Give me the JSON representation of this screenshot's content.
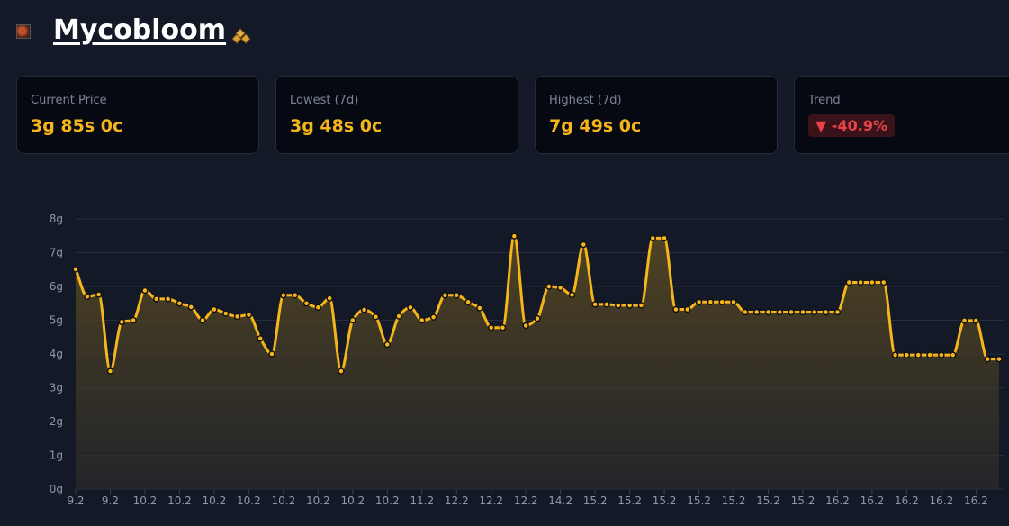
{
  "header": {
    "item_name": "Mycobloom",
    "item_icon": "mycobloom-herb-icon",
    "currency_icon": "gold-coins-icon"
  },
  "stats": [
    {
      "label": "Current Price",
      "value": "3g 85s 0c"
    },
    {
      "label": "Lowest (7d)",
      "value": "3g 48s 0c"
    },
    {
      "label": "Highest (7d)",
      "value": "7g 49s 0c"
    }
  ],
  "trend": {
    "label": "Trend",
    "value": "-40.9%",
    "direction": "down",
    "icon": "triangle-down-icon",
    "color": "#e8434b"
  },
  "colors": {
    "line": "#f5b51b",
    "background": "#131926",
    "card": "#060911"
  },
  "chart_data": {
    "type": "area",
    "ylabel": "",
    "xlabel": "",
    "ylim": [
      0,
      8
    ],
    "yticks": [
      "0g",
      "1g",
      "2g",
      "3g",
      "4g",
      "5g",
      "6g",
      "7g",
      "8g"
    ],
    "grid": true,
    "xtick_every": 3,
    "xticks": [
      "9.2",
      "9.2",
      "10.2",
      "10.2",
      "10.2",
      "10.2",
      "10.2",
      "10.2",
      "10.2",
      "10.2",
      "11.2",
      "12.2",
      "12.2",
      "12.2",
      "14.2",
      "15.2",
      "15.2",
      "15.2",
      "15.2",
      "15.2",
      "15.2",
      "15.2",
      "16.2",
      "16.2",
      "16.2",
      "16.2",
      "16.2"
    ],
    "values": [
      6.51,
      5.7,
      5.76,
      3.49,
      4.95,
      5.0,
      5.88,
      5.63,
      5.63,
      5.5,
      5.39,
      5.0,
      5.32,
      5.2,
      5.11,
      5.16,
      4.46,
      4.0,
      5.74,
      5.74,
      5.5,
      5.38,
      5.65,
      3.49,
      5.0,
      5.31,
      5.1,
      4.28,
      5.12,
      5.38,
      5.0,
      5.09,
      5.74,
      5.74,
      5.54,
      5.36,
      4.78,
      4.78,
      7.49,
      4.84,
      5.05,
      6.0,
      5.96,
      5.75,
      7.24,
      5.47,
      5.47,
      5.44,
      5.44,
      5.44,
      7.43,
      7.43,
      5.32,
      5.32,
      5.54,
      5.54,
      5.54,
      5.54,
      5.24,
      5.24,
      5.24,
      5.24,
      5.24,
      5.24,
      5.24,
      5.24,
      5.24,
      6.12,
      6.12,
      6.12,
      6.12,
      3.97,
      3.97,
      3.97,
      3.97,
      3.97,
      3.97,
      4.99,
      4.99,
      3.85,
      3.85
    ]
  }
}
